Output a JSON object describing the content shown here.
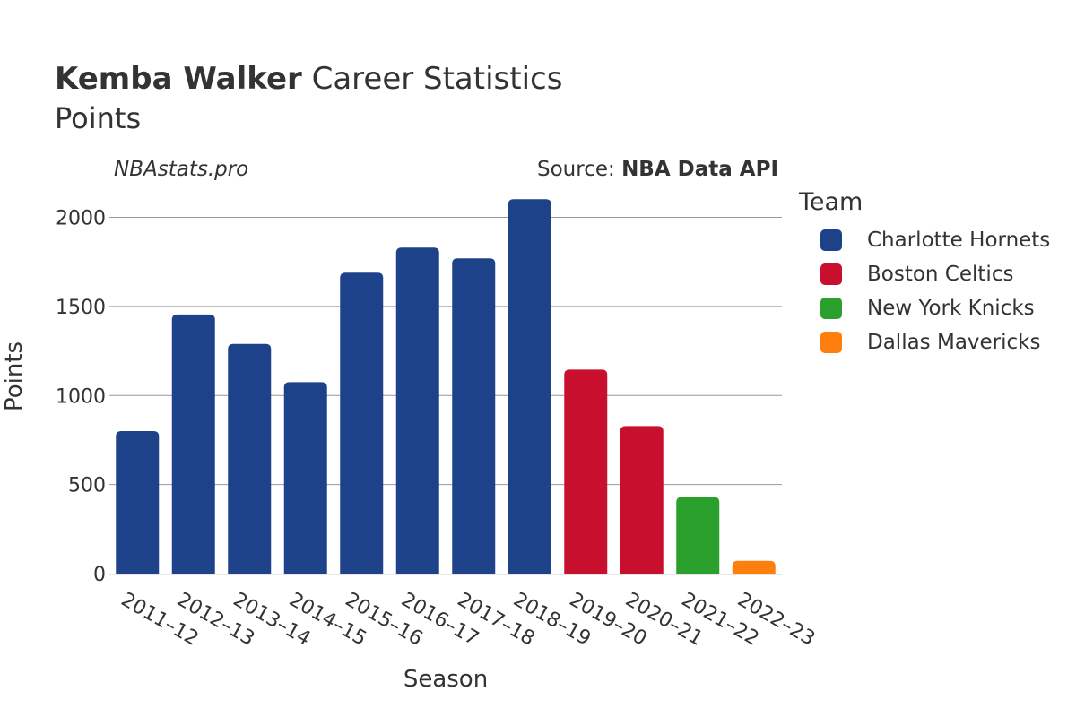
{
  "header": {
    "title_bold": "Kemba Walker",
    "title_rest": "Career Statistics",
    "subtitle": "Points",
    "site": "NBAstats.pro",
    "source_prefix": "Source: ",
    "source_name": "NBA Data API"
  },
  "chart_data": {
    "type": "bar",
    "xlabel": "Season",
    "ylabel": "Points",
    "ylim": [
      0,
      2200
    ],
    "yticks": [
      0,
      500,
      1000,
      1500,
      2000
    ],
    "grid": true,
    "legend_title": "Team",
    "legend_position": "right",
    "teams": [
      {
        "name": "Charlotte Hornets",
        "color": "#1d428a"
      },
      {
        "name": "Boston Celtics",
        "color": "#c8102e"
      },
      {
        "name": "New York Knicks",
        "color": "#2ca02c"
      },
      {
        "name": "Dallas Mavericks",
        "color": "#ff7f0e"
      }
    ],
    "categories": [
      "2011–12",
      "2012–13",
      "2013–14",
      "2014–15",
      "2015–16",
      "2016–17",
      "2017–18",
      "2018–19",
      "2019–20",
      "2020–21",
      "2021–22",
      "2022–23"
    ],
    "values": [
      800,
      1455,
      1289,
      1075,
      1689,
      1830,
      1770,
      2102,
      1145,
      828,
      430,
      72
    ],
    "team_index": [
      0,
      0,
      0,
      0,
      0,
      0,
      0,
      0,
      1,
      1,
      2,
      3
    ]
  }
}
